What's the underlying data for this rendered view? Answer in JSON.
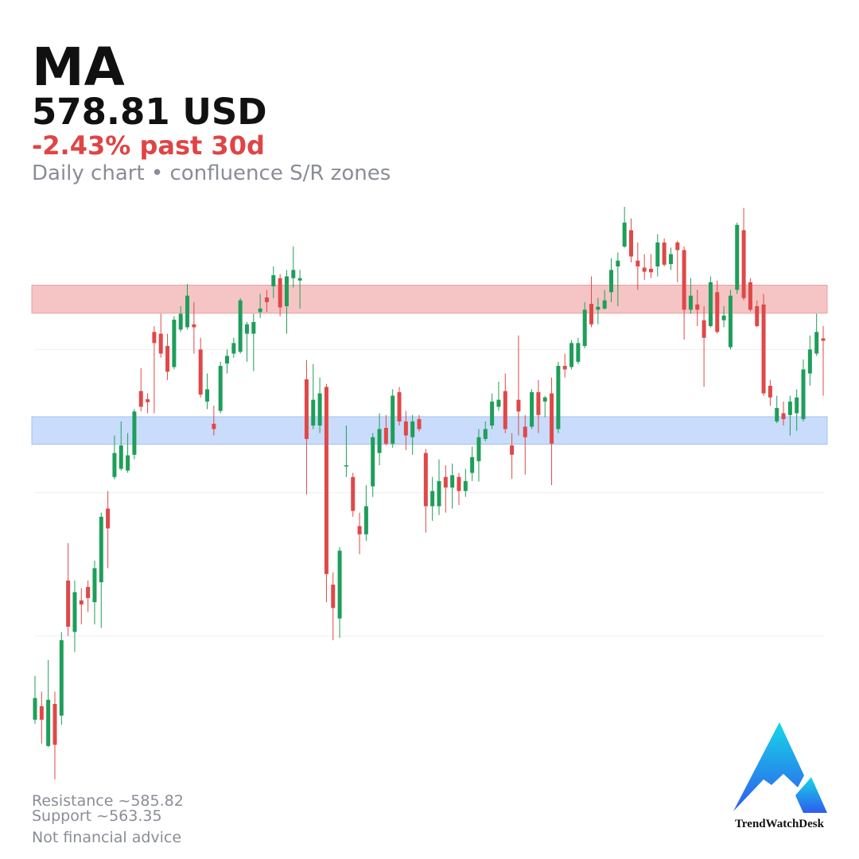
{
  "header": {
    "ticker": "MA",
    "price": "578.81 USD",
    "change": "-2.43% past 30d",
    "subtitle": "Daily chart • confluence S/R zones"
  },
  "footer": {
    "resistance": "Resistance ~585.82",
    "support": "Support ~563.35",
    "disclaimer": "Not financial advice"
  },
  "logo": {
    "text": "TrendWatchDesk"
  },
  "chart_data": {
    "type": "candlestick",
    "up_color": "#1e9e5a",
    "down_color": "#e04848",
    "ylim": [
      503.0,
      601.6
    ],
    "yticks": [
      577.2,
      552.7,
      528.2
    ],
    "grid": true,
    "zones": [
      {
        "low": 583.4,
        "high": 588.2,
        "color": "#f5c5c5",
        "border": "#eaa0a0"
      },
      {
        "low": 561.0,
        "high": 565.7,
        "color": "#c9dcfb",
        "border": "#a3c1f0"
      }
    ],
    "open": [
      513.9,
      516.2,
      509.4,
      516.6,
      514.6,
      537.7,
      528.9,
      534.3,
      536.6,
      534.0,
      537.4,
      550.0,
      555.4,
      556.8,
      556.5,
      559.2,
      570.1,
      568.7,
      580.2,
      579.9,
      577.8,
      574.2,
      580.6,
      581.0,
      581.5,
      577.2,
      568.3,
      564.5,
      566.7,
      574.8,
      576.5,
      576.8,
      579.9,
      579.9,
      583.6,
      586.1,
      588.0,
      589.4,
      584.6,
      589.4,
      589.0,
      572.1,
      564.2,
      564.2,
      570.8,
      537.0,
      531.2,
      557.2,
      555.4,
      547.0,
      545.6,
      553.8,
      559.5,
      563.8,
      561.1,
      569.9,
      564.9,
      562.2,
      565.3,
      559.5,
      550.4,
      550.4,
      555.4,
      553.6,
      555.4,
      553.0,
      556.1,
      558.1,
      561.9,
      564.2,
      567.4,
      570.1,
      560.8,
      568.6,
      564.0,
      564.0,
      569.9,
      568.3,
      569.7,
      563.6,
      574.4,
      574.2,
      575.1,
      577.8,
      585.0,
      584.0,
      584.2,
      587.0,
      591.4,
      594.8,
      597.6,
      592.4,
      591.2,
      591.0,
      591.4,
      595.5,
      591.8,
      595.5,
      594.2,
      584.0,
      584.9,
      582.2,
      581.2,
      587.0,
      582.2,
      577.6,
      587.4,
      597.6,
      588.7,
      584.6,
      584.9,
      571.0,
      564.9,
      566.3,
      566.0,
      566.3,
      565.3,
      573.1,
      576.5,
      579.1
    ],
    "high": [
      521.4,
      518.7,
      524.1,
      518.7,
      528.9,
      544.1,
      537.7,
      536.4,
      537.7,
      541.1,
      549.3,
      553.0,
      562.5,
      564.9,
      562.9,
      567.0,
      574.0,
      569.7,
      581.2,
      583.3,
      579.9,
      582.9,
      584.6,
      588.4,
      585.3,
      579.2,
      573.1,
      567.6,
      575.1,
      577.2,
      579.2,
      586.0,
      581.9,
      583.3,
      586.7,
      587.4,
      591.4,
      590.1,
      590.8,
      594.8,
      590.8,
      575.4,
      574.7,
      572.4,
      571.3,
      539.1,
      543.4,
      564.2,
      556.1,
      549.3,
      554.0,
      562.9,
      566.3,
      566.0,
      570.4,
      570.8,
      566.7,
      566.0,
      566.0,
      560.2,
      555.4,
      558.4,
      557.4,
      557.7,
      556.1,
      556.8,
      560.6,
      563.6,
      564.9,
      569.7,
      571.7,
      573.1,
      562.9,
      579.6,
      566.0,
      570.4,
      572.0,
      569.3,
      572.4,
      575.1,
      576.5,
      578.8,
      579.2,
      585.3,
      589.7,
      586.0,
      587.4,
      592.8,
      593.8,
      601.6,
      599.6,
      595.5,
      593.5,
      593.5,
      596.9,
      596.2,
      594.6,
      595.8,
      594.8,
      589.4,
      587.4,
      584.6,
      589.7,
      589.0,
      584.6,
      587.4,
      598.9,
      601.4,
      589.4,
      585.6,
      586.7,
      572.0,
      569.3,
      568.3,
      569.3,
      570.4,
      575.5,
      579.6,
      583.3,
      581.2
    ],
    "low": [
      513.2,
      509.8,
      509.2,
      503.7,
      513.0,
      528.2,
      525.5,
      530.2,
      532.3,
      530.2,
      529.6,
      539.8,
      555.0,
      556.5,
      556.1,
      558.4,
      566.6,
      566.3,
      566.3,
      575.8,
      572.0,
      573.8,
      580.2,
      580.6,
      576.5,
      569.0,
      567.0,
      562.5,
      566.3,
      573.1,
      575.8,
      576.5,
      575.1,
      573.5,
      582.6,
      583.6,
      586.0,
      582.9,
      579.9,
      587.8,
      584.2,
      552.4,
      563.6,
      562.9,
      534.0,
      527.5,
      527.9,
      555.4,
      548.6,
      542.2,
      544.5,
      552.0,
      557.4,
      560.8,
      560.4,
      564.2,
      560.0,
      559.2,
      563.2,
      545.9,
      547.9,
      548.9,
      549.3,
      550.0,
      550.6,
      552.0,
      554.7,
      554.6,
      561.5,
      563.6,
      566.7,
      562.9,
      555.1,
      562.5,
      555.8,
      563.6,
      562.9,
      565.6,
      554.0,
      562.9,
      572.4,
      573.8,
      574.7,
      577.4,
      581.0,
      581.5,
      584.0,
      585.3,
      584.6,
      594.6,
      592.1,
      587.4,
      589.1,
      589.4,
      589.7,
      591.4,
      590.8,
      588.7,
      578.9,
      583.3,
      581.2,
      570.8,
      581.0,
      579.9,
      581.0,
      577.2,
      586.7,
      585.6,
      583.7,
      581.0,
      569.3,
      567.6,
      564.6,
      564.2,
      562.5,
      563.3,
      564.9,
      571.0,
      576.1,
      569.3
    ],
    "close": [
      517.6,
      513.9,
      517.3,
      509.6,
      527.5,
      529.8,
      535.7,
      533.6,
      534.7,
      539.8,
      548.6,
      546.6,
      559.5,
      560.8,
      559.1,
      566.6,
      567.4,
      568.2,
      578.3,
      576.5,
      573.4,
      582.3,
      583.3,
      586.4,
      581.0,
      569.5,
      570.4,
      563.6,
      574.4,
      576.1,
      578.3,
      585.6,
      581.5,
      581.9,
      584.2,
      585.3,
      589.9,
      584.4,
      589.7,
      590.8,
      589.4,
      561.9,
      568.6,
      569.7,
      538.8,
      533.0,
      542.8,
      557.4,
      549.6,
      545.6,
      550.4,
      562.2,
      563.6,
      561.1,
      569.3,
      564.9,
      562.5,
      564.9,
      563.6,
      550.4,
      553.0,
      554.7,
      553.6,
      555.7,
      553.0,
      554.7,
      558.8,
      562.2,
      563.6,
      568.3,
      568.6,
      563.6,
      559.2,
      566.6,
      562.2,
      569.9,
      566.0,
      569.0,
      561.1,
      574.4,
      573.8,
      578.3,
      578.3,
      584.0,
      581.5,
      584.5,
      585.6,
      590.8,
      592.4,
      598.9,
      593.1,
      591.4,
      590.5,
      590.4,
      595.5,
      591.7,
      593.5,
      594.2,
      584.0,
      586.4,
      584.0,
      579.2,
      588.7,
      580.2,
      583.0,
      586.4,
      598.5,
      586.0,
      584.0,
      581.2,
      569.7,
      569.0,
      567.2,
      565.3,
      568.3,
      569.0,
      573.8,
      577.2,
      580.2,
      578.7
    ]
  }
}
